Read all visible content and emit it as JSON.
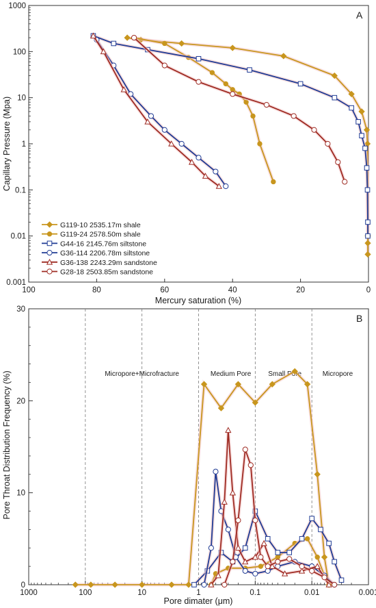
{
  "chart_data": [
    {
      "type": "line",
      "panel_label": "A",
      "xlabel": "Mercury saturation (%)",
      "ylabel": "Capillary Pressure (Mpa)",
      "xlim": [
        100,
        0
      ],
      "ylim": [
        0.001,
        1000
      ],
      "yscale": "log",
      "x_ticks": [
        100,
        80,
        60,
        40,
        20,
        0
      ],
      "y_ticks": [
        {
          "v": 0.001,
          "label": "0.001"
        },
        {
          "v": 0.01,
          "label": "0.01"
        },
        {
          "v": 0.1,
          "label": "0.1"
        },
        {
          "v": 1,
          "label": "1"
        },
        {
          "v": 10,
          "label": "10"
        },
        {
          "v": 100,
          "label": "100"
        },
        {
          "v": 1000,
          "label": "1000"
        }
      ],
      "legend_position": "bottom-left",
      "series": [
        {
          "name": "G119-10 2535.17m shale",
          "color": "#c8961e",
          "marker": "diamond",
          "x": [
            71,
            67,
            55,
            40,
            25,
            10,
            5,
            2,
            0.5,
            0.3,
            0.2,
            0.2,
            0.2
          ],
          "y": [
            200,
            180,
            150,
            120,
            80,
            30,
            12,
            5,
            2,
            1,
            0.01,
            0.007,
            0.004
          ]
        },
        {
          "name": "G119-24 2578.50m shale",
          "color": "#c8961e",
          "marker": "dot",
          "x": [
            69,
            60,
            53,
            46,
            42,
            40,
            38,
            36,
            34,
            32,
            28
          ],
          "y": [
            200,
            150,
            75,
            35,
            20,
            15,
            12,
            8,
            4,
            1,
            0.15
          ]
        },
        {
          "name": "G44-16 2145.76m siltstone",
          "color": "#1f3b94",
          "marker": "square",
          "x": [
            81,
            75,
            65,
            50,
            35,
            20,
            10,
            5,
            3,
            2,
            1,
            0.5,
            0.3,
            0.2,
            0.2
          ],
          "y": [
            220,
            150,
            110,
            70,
            40,
            20,
            10,
            6,
            3,
            1.5,
            0.8,
            0.3,
            0.1,
            0.02,
            0.01
          ]
        },
        {
          "name": "G36-114 2206.78m siltstone",
          "color": "#1f3b94",
          "marker": "circle",
          "x": [
            80,
            75,
            70,
            64,
            60,
            55,
            50,
            45,
            42
          ],
          "y": [
            180,
            50,
            12,
            4,
            2,
            1,
            0.5,
            0.25,
            0.12
          ]
        },
        {
          "name": "G36-138 2243.29m sandstone",
          "color": "#9e2a22",
          "marker": "triangle",
          "x": [
            81,
            78,
            72,
            65,
            58,
            52,
            48,
            44
          ],
          "y": [
            220,
            100,
            15,
            3,
            1,
            0.4,
            0.2,
            0.12
          ]
        },
        {
          "name": "G28-18 2503.85m sandstone",
          "color": "#9e2a22",
          "marker": "circle",
          "x": [
            69,
            60,
            50,
            40,
            30,
            22,
            16,
            12,
            9,
            7
          ],
          "y": [
            200,
            50,
            22,
            12,
            7,
            4,
            2,
            1,
            0.4,
            0.15
          ]
        }
      ]
    },
    {
      "type": "line",
      "panel_label": "B",
      "xlabel": "Pore dimater (μm)",
      "ylabel": "Pore Throat Distribution Frequency (%)",
      "xlim": [
        1000,
        0.001
      ],
      "xscale": "log",
      "ylim": [
        0,
        30
      ],
      "x_ticks": [
        {
          "v": 1000,
          "label": "1000"
        },
        {
          "v": 100,
          "label": "100"
        },
        {
          "v": 10,
          "label": "10"
        },
        {
          "v": 1,
          "label": "1"
        },
        {
          "v": 0.1,
          "label": "0.1"
        },
        {
          "v": 0.01,
          "label": "0.01"
        },
        {
          "v": 0.001,
          "label": "0.001"
        }
      ],
      "y_ticks": [
        0,
        10,
        20,
        30
      ],
      "vlines": [
        100,
        10,
        1,
        0.1,
        0.01
      ],
      "annotations": [
        {
          "text": "Micropore+Microfracture",
          "x": 10,
          "y": 23
        },
        {
          "text": "Medium Pore",
          "x": 0.27,
          "y": 23
        },
        {
          "text": "Small Pore",
          "x": 0.03,
          "y": 23
        },
        {
          "text": "Micropore",
          "x": 0.0035,
          "y": 23
        }
      ],
      "series": [
        {
          "name": "G119-10 2535.17m shale",
          "color": "#c8961e",
          "marker": "diamond",
          "x": [
            150,
            80,
            30,
            10,
            3,
            1.5,
            0.8,
            0.4,
            0.2,
            0.1,
            0.05,
            0.02,
            0.012,
            0.008,
            0.006,
            0.005
          ],
          "y": [
            0,
            0,
            0,
            0,
            0,
            0,
            21.8,
            19.2,
            21.8,
            19.8,
            21.8,
            23.2,
            21.8,
            12,
            3,
            0
          ]
        },
        {
          "name": "G119-24 2578.50m shale",
          "color": "#c8961e",
          "marker": "dot",
          "x": [
            0.6,
            0.5,
            0.3,
            0.15,
            0.08,
            0.04,
            0.02,
            0.012,
            0.008,
            0.006,
            0.005
          ],
          "y": [
            0,
            1.2,
            1.8,
            1.8,
            2,
            3,
            4.5,
            5,
            3,
            1,
            0
          ]
        },
        {
          "name": "G44-16 2145.76m siltstone",
          "color": "#1f3b94",
          "marker": "square",
          "x": [
            1.2,
            0.7,
            0.4,
            0.25,
            0.15,
            0.1,
            0.06,
            0.04,
            0.025,
            0.015,
            0.01,
            0.007,
            0.005,
            0.004,
            0.003
          ],
          "y": [
            0,
            1.5,
            3.5,
            2.5,
            4,
            8,
            5,
            3.5,
            3.5,
            5,
            7.2,
            6,
            4.5,
            2.5,
            0.5
          ]
        },
        {
          "name": "G36-114 2206.78m siltstone",
          "color": "#1f3b94",
          "marker": "circle",
          "x": [
            0.8,
            0.6,
            0.5,
            0.4,
            0.3,
            0.22,
            0.15,
            0.1,
            0.06,
            0.04,
            0.02,
            0.01,
            0.006,
            0.004
          ],
          "y": [
            0,
            4,
            12.3,
            8,
            6,
            3,
            1.5,
            1.2,
            1.5,
            2,
            2.5,
            2,
            1,
            0
          ]
        },
        {
          "name": "G36-138 2243.29m sandstone",
          "color": "#9e2a22",
          "marker": "triangle",
          "x": [
            0.6,
            0.45,
            0.35,
            0.3,
            0.25,
            0.2,
            0.15,
            0.1,
            0.07,
            0.05,
            0.03,
            0.015,
            0.008,
            0.005
          ],
          "y": [
            0,
            1,
            9,
            16.8,
            10,
            4,
            2.5,
            3,
            4.5,
            2,
            1.2,
            1.5,
            2,
            0
          ]
        },
        {
          "name": "G28-18 2503.85m sandstone",
          "color": "#9e2a22",
          "marker": "circle",
          "x": [
            0.35,
            0.25,
            0.2,
            0.15,
            0.12,
            0.1,
            0.08,
            0.06,
            0.04,
            0.025,
            0.015,
            0.01,
            0.006,
            0.004
          ],
          "y": [
            0,
            2.5,
            7,
            14.7,
            13,
            7,
            3,
            2,
            2.5,
            2.8,
            2,
            1.5,
            0.8,
            0
          ]
        }
      ]
    }
  ]
}
